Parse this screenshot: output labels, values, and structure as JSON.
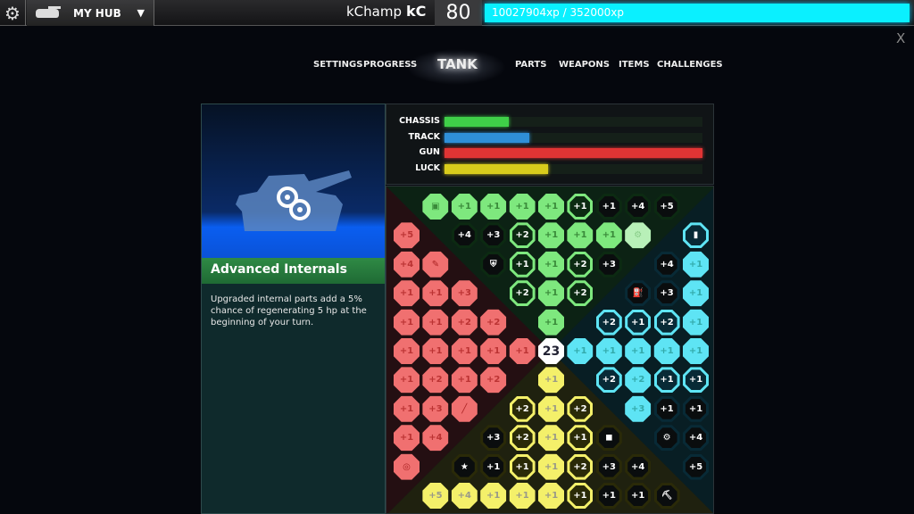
{
  "topbar": {
    "gear_icon": "gear-icon",
    "hub_label": "MY HUB",
    "username": "kChamp",
    "user_icon": "kC",
    "level": "80",
    "xp": "10027904xp / 352000xp",
    "xp_progress": 1.0
  },
  "close_label": "X",
  "nav": [
    {
      "label": "SETTINGS"
    },
    {
      "label": "PROGRESS"
    },
    {
      "label": "TANK",
      "active": true
    },
    {
      "label": "PARTS"
    },
    {
      "label": "WEAPONS"
    },
    {
      "label": "ITEMS"
    },
    {
      "label": "CHALLENGES"
    }
  ],
  "item": {
    "title": "Advanced Internals",
    "description": "Upgraded internal parts add a 5% chance of regenerating 5 hp at the beginning of your turn.",
    "icon": "gears-icon"
  },
  "stats": [
    {
      "label": "CHASSIS",
      "value": 0.25,
      "color": "#3fd048"
    },
    {
      "label": "TRACK",
      "value": 0.33,
      "color": "#2f8fd8"
    },
    {
      "label": "GUN",
      "value": 1.0,
      "color": "#e03434"
    },
    {
      "label": "LUCK",
      "value": 0.4,
      "color": "#d8cc1c"
    }
  ],
  "colors": {
    "r": "#f07070",
    "g": "#7ee87e",
    "b": "#5ee4f4",
    "y": "#f4f06a"
  },
  "center_value": "23",
  "grid": [
    [
      "",
      "g:f:chip-icon",
      "g:f:+1",
      "g:f:+1",
      "g:f:+1",
      "g:f:+1",
      "g:o:+1",
      "g:d:+1",
      "g:d:+4",
      "g:d:+5",
      ""
    ],
    [
      "r:f:+5",
      "",
      "g:d:+4",
      "g:d:+3",
      "g:o:+2",
      "g:f:+1",
      "g:f:+1",
      "g:f:+1",
      "g:f:gears-icon",
      "",
      "b:o:canister-icon"
    ],
    [
      "r:f:+4",
      "r:f:syringe-icon",
      "",
      "g:d:shield-icon",
      "g:o:+1",
      "g:f:+1",
      "g:o:+2",
      "g:d:+3",
      "",
      "b:d:+4",
      "b:f:+1"
    ],
    [
      "r:f:+1",
      "r:f:+1",
      "r:f:+3",
      "",
      "g:o:+2",
      "g:f:+1",
      "g:o:+2",
      "",
      "b:d:fuel-icon",
      "b:d:+3",
      "b:f:+1"
    ],
    [
      "r:f:+1",
      "r:f:+1",
      "r:f:+2",
      "r:f:+2",
      "",
      "g:f:+1",
      "",
      "b:o:+2",
      "b:o:+1",
      "b:o:+2",
      "b:f:+1"
    ],
    [
      "r:f:+1",
      "r:f:+1",
      "r:f:+1",
      "r:f:+1",
      "r:f:+1",
      "c:c:23",
      "b:f:+1",
      "b:f:+1",
      "b:f:+1",
      "b:f:+1",
      "b:f:+1"
    ],
    [
      "r:f:+1",
      "r:f:+2",
      "r:f:+1",
      "r:f:+2",
      "",
      "y:f:+1",
      "",
      "b:o:+2",
      "b:f:+2",
      "b:o:+1",
      "b:o:+1"
    ],
    [
      "r:f:+1",
      "r:f:+3",
      "r:f:stick-icon",
      "",
      "y:o:+2",
      "y:f:+1",
      "y:o:+2",
      "",
      "b:f:+3",
      "b:d:+1",
      "b:d:+1"
    ],
    [
      "r:f:+1",
      "r:f:+4",
      "",
      "y:d:+3",
      "y:o:+2",
      "y:f:+1",
      "y:o:+1",
      "y:d:armor-icon",
      "",
      "b:d:engine-icon",
      "b:d:+4"
    ],
    [
      "r:f:target-icon",
      "",
      "y:d:star-icon",
      "y:d:+1",
      "y:o:+1",
      "y:f:+1",
      "y:o:+2",
      "y:d:+3",
      "y:d:+4",
      "",
      "b:d:+5"
    ],
    [
      "",
      "y:f:+5",
      "y:f:+4",
      "y:f:+1",
      "y:f:+1",
      "y:f:+1",
      "y:o:+1",
      "y:d:+1",
      "y:d:+1",
      "y:d:pickaxe-icon",
      ""
    ]
  ]
}
